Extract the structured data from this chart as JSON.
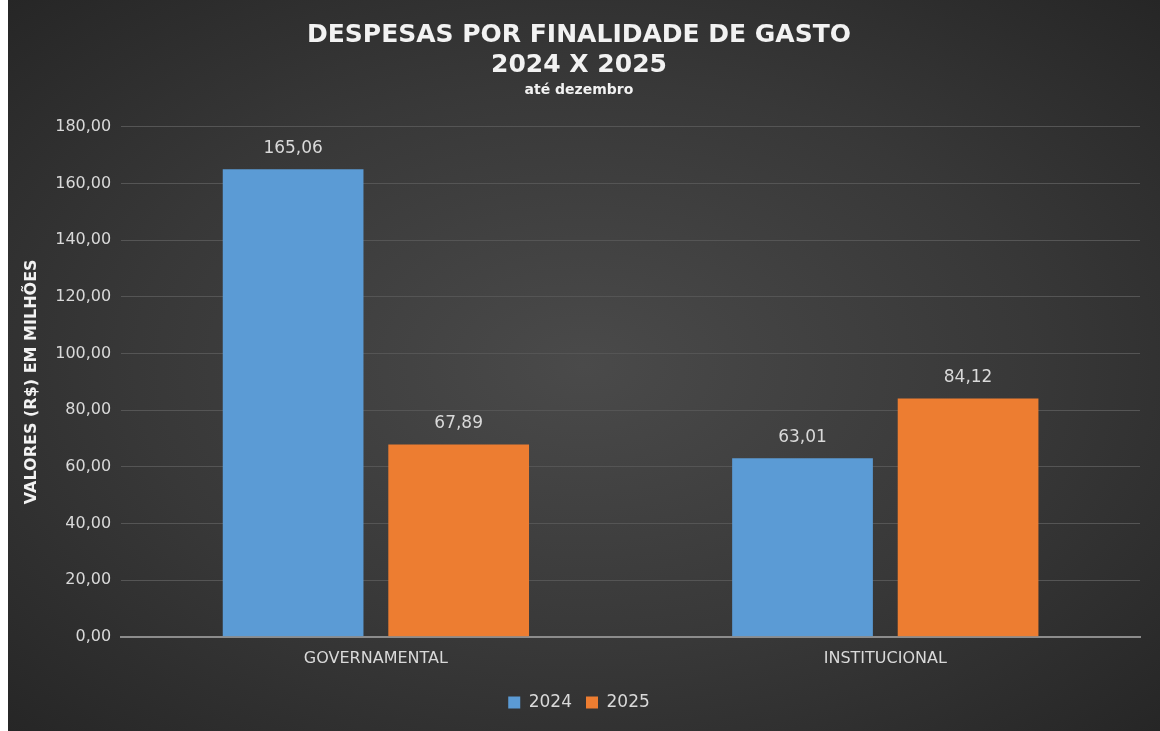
{
  "chart_data": {
    "type": "bar",
    "title": "DESPESAS POR FINALIDADE DE GASTO\n2024 X 2025",
    "subtitle": "até dezembro",
    "ylabel": "VALORES (R$) EM MILHÕES",
    "categories": [
      "GOVERNAMENTAL",
      "INSTITUCIONAL"
    ],
    "series": [
      {
        "name": "2024",
        "color": "#5b9bd5",
        "values": [
          165.06,
          63.01
        ],
        "value_labels": [
          "165,06",
          "63,01"
        ]
      },
      {
        "name": "2025",
        "color": "#ed7d31",
        "values": [
          67.89,
          84.12
        ],
        "value_labels": [
          "67,89",
          "84,12"
        ]
      }
    ],
    "ylim": [
      0,
      180
    ],
    "yticks": [
      {
        "value": 0,
        "label": "0,00"
      },
      {
        "value": 20,
        "label": "20,00"
      },
      {
        "value": 40,
        "label": "40,00"
      },
      {
        "value": 60,
        "label": "60,00"
      },
      {
        "value": 80,
        "label": "80,00"
      },
      {
        "value": 100,
        "label": "100,00"
      },
      {
        "value": 120,
        "label": "120,00"
      },
      {
        "value": 140,
        "label": "140,00"
      },
      {
        "value": 160,
        "label": "160,00"
      },
      {
        "value": 180,
        "label": "180,00"
      }
    ],
    "grid": "y",
    "legend": "bottom"
  }
}
